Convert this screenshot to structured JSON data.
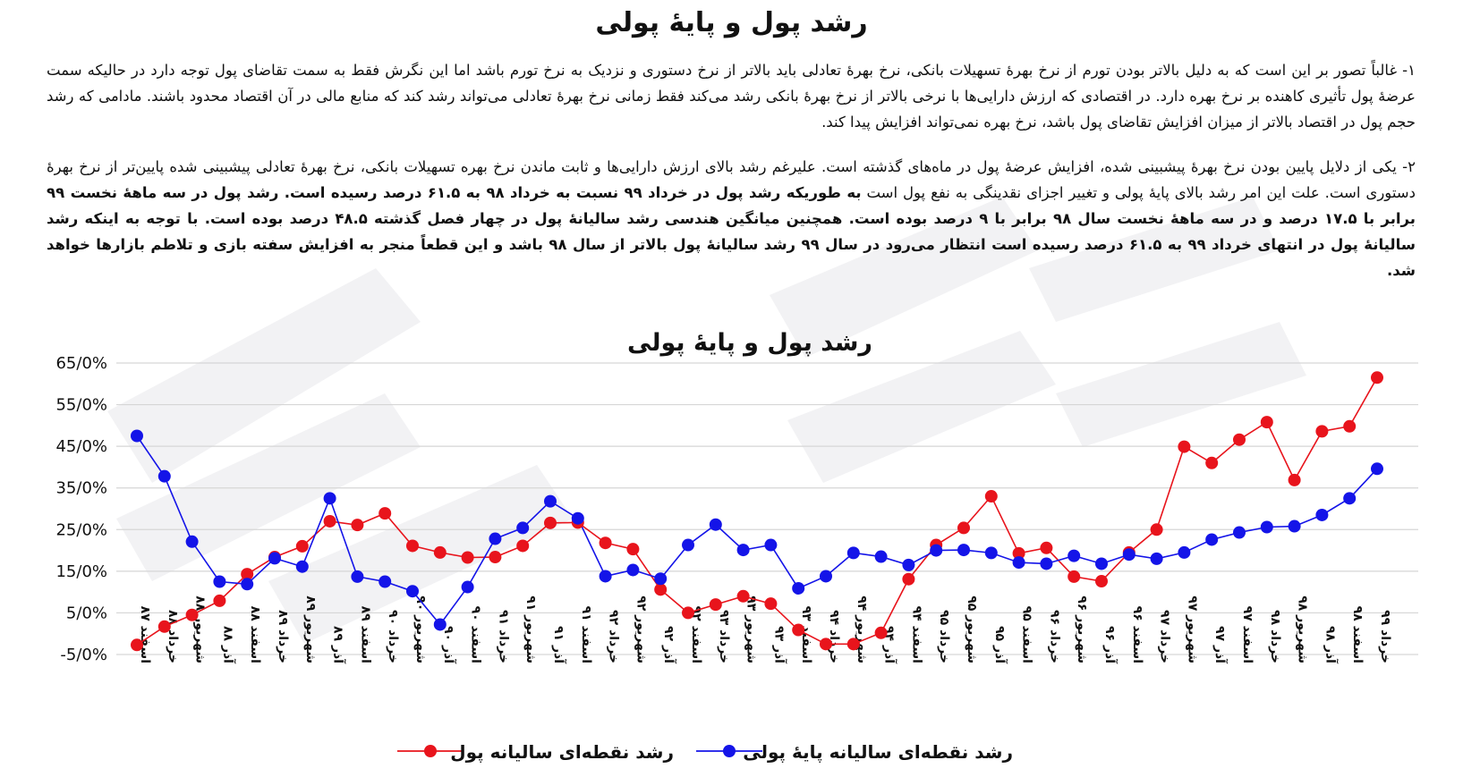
{
  "document": {
    "title": "رشد پول و پایهٔ پولی",
    "paragraph1": "۱- غالباً تصور بر این است که به دلیل بالاتر بودن تورم از نرخ بهرهٔ تسهیلات بانکی، نرخ بهرهٔ تعادلی باید بالاتر از نرخ دستوری و نزدیک به نرخ تورم باشد اما این نگرش فقط به سمت تقاضای پول توجه دارد در حالیکه سمت عرضهٔ پول تأثیری کاهنده بر نرخ بهره دارد. در اقتصادی که ارزش دارایی‌ها با نرخی بالاتر از نرخ بهرهٔ بانکی رشد می‌کند فقط زمانی نرخ بهرهٔ تعادلی می‌تواند رشد کند که منابع مالی در آن اقتصاد محدود باشند. مادامی که رشد حجم پول در اقتصاد بالاتر از میزان افزایش تقاضای پول باشد، نرخ بهره نمی‌تواند افزایش پیدا کند.",
    "paragraph2_normal": "۲- یکی از دلایل پایین بودن نرخ بهرهٔ پیشبینی شده، افزایش عرضهٔ پول در ماه‌های گذشته است. علیرغم رشد بالای ارزش دارایی‌ها و ثابت ماندن نرخ بهره تسهیلات بانکی، نرخ بهرهٔ تعادلی پیشبینی شده پایین‌تر از نرخ بهرهٔ دستوری است. علت این امر رشد بالای پایهٔ پولی و تغییر اجزای نقدینگی به نفع پول است ",
    "paragraph2_bold": "به طوریکه رشد پول در خرداد ۹۹ نسبت به خرداد ۹۸ به ۶۱.۵ درصد رسیده است. رشد پول در سه ماههٔ نخست ۹۹ برابر با ۱۷.۵ درصد و در سه ماههٔ نخست سال ۹۸ برابر با ۹ درصد بوده است. همچنین میانگین هندسی رشد سالیانهٔ پول در چهار فصل گذشته ۴۸.۵ درصد بوده است. با توجه به اینکه رشد سالیانهٔ پول در انتهای خرداد ۹۹ به ۶۱.۵ درصد رسیده است انتظار می‌رود در سال ۹۹ رشد سالیانهٔ پول بالاتر از سال ۹۸ باشد و این قطعاً منجر به افزایش سفته بازی و تلاطم بازارها خواهد شد."
  },
  "chart_data": {
    "type": "line",
    "title": "رشد پول و پایهٔ پولی",
    "xlabel": "",
    "ylabel": "",
    "ylim": [
      -5,
      65
    ],
    "yticks": [
      -5,
      5,
      15,
      25,
      35,
      45,
      55,
      65
    ],
    "ytick_labels": [
      "-5/0%",
      "5/0%",
      "15/0%",
      "25/0%",
      "35/0%",
      "45/0%",
      "55/0%",
      "65/0%"
    ],
    "grid": true,
    "legend_position": "bottom",
    "categories": [
      "اسفند ۸۷",
      "خرداد ۸۸",
      "شهریور ۸۸",
      "آذر ۸۸",
      "اسفند ۸۸",
      "خرداد ۸۹",
      "شهریور ۸۹",
      "آذر ۸۹",
      "اسفند ۸۹",
      "خرداد ۹۰",
      "شهریور ۹۰",
      "آذر ۹۰",
      "اسفند ۹۰",
      "خرداد ۹۱",
      "شهریور ۹۱",
      "آذر ۹۱",
      "اسفند ۹۱",
      "خرداد ۹۲",
      "شهریور ۹۲",
      "آذر ۹۲",
      "اسفند ۹۲",
      "خرداد ۹۳",
      "شهریور ۹۳",
      "آذر ۹۳",
      "اسفند ۹۳",
      "خرداد ۹۴",
      "شهریور ۹۴",
      "آذر ۹۴",
      "اسفند ۹۴",
      "خرداد ۹۵",
      "شهریور ۹۵",
      "آذر ۹۵",
      "اسفند ۹۵",
      "خرداد ۹۶",
      "شهریور ۹۶",
      "آذر ۹۶",
      "اسفند ۹۶",
      "خرداد ۹۷",
      "شهریور ۹۷",
      "آذر ۹۷",
      "اسفند ۹۷",
      "خرداد ۹۸",
      "شهریور ۹۸",
      "آذر ۹۸",
      "اسفند ۹۸",
      "خرداد ۹۹"
    ],
    "series": [
      {
        "name": "رشد نقطه‌ای سالیانه پول",
        "color": "#e8141c",
        "values": [
          -2.7,
          1.7,
          4.5,
          7.9,
          14.3,
          18.4,
          21.0,
          27.0,
          26.1,
          28.9,
          21.1,
          19.5,
          18.3,
          18.4,
          21.1,
          26.6,
          26.7,
          21.8,
          20.3,
          10.6,
          5.0,
          7.0,
          9.0,
          7.2,
          0.9,
          -2.5,
          -2.5,
          0.2,
          13.1,
          21.3,
          25.4,
          33.0,
          19.3,
          20.6,
          13.7,
          12.6,
          19.5,
          25.0,
          44.9,
          41.0,
          46.6,
          50.8,
          36.9,
          48.6,
          49.8,
          61.5
        ]
      },
      {
        "name": "رشد نقطه‌ای سالیانه پایهٔ پولی",
        "color": "#1414e8",
        "values": [
          47.5,
          37.8,
          22.1,
          12.5,
          11.9,
          18.1,
          16.1,
          32.5,
          13.7,
          12.5,
          10.2,
          2.2,
          11.2,
          22.8,
          25.4,
          31.8,
          27.7,
          13.8,
          15.3,
          13.2,
          21.3,
          26.2,
          20.1,
          21.3,
          10.9,
          13.8,
          19.4,
          18.5,
          16.5,
          20.0,
          20.1,
          19.4,
          17.1,
          16.8,
          18.7,
          16.8,
          19.0,
          18.0,
          19.5,
          22.6,
          24.3,
          25.6,
          25.8,
          28.5,
          32.5,
          39.6
        ]
      }
    ]
  }
}
